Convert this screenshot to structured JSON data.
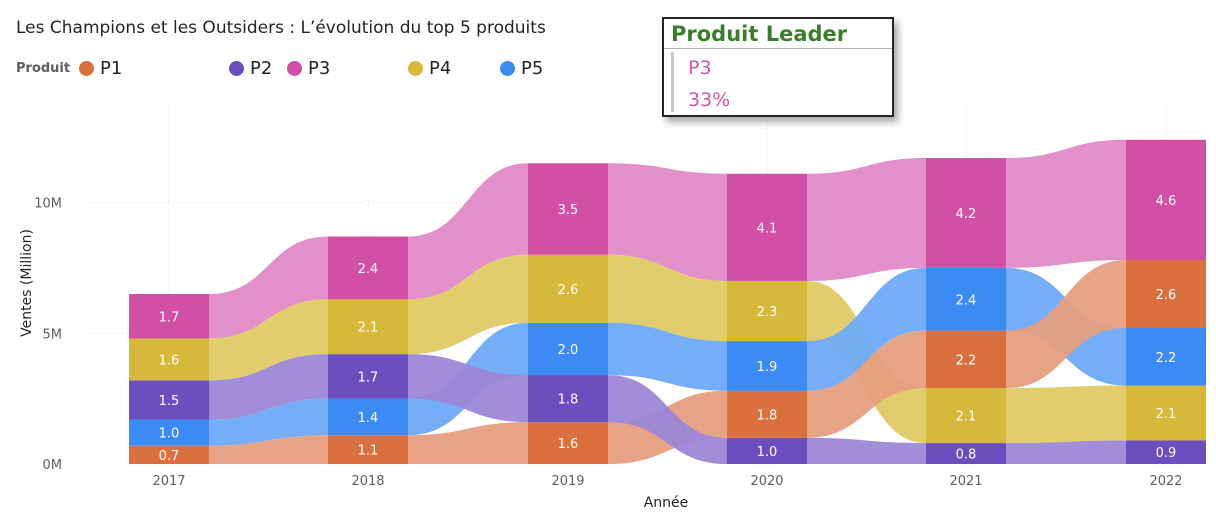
{
  "chart_data": {
    "type": "ribbon",
    "title": "Les Champions et les Outsiders : L’évolution du top 5 produits",
    "legend_title": "Produit",
    "legend_position": "top-left",
    "categories": [
      "2017",
      "2018",
      "2019",
      "2020",
      "2021",
      "2022"
    ],
    "xlabel": "Année",
    "ylabel": "Ventes (Million)",
    "ylim": [
      0,
      12.5
    ],
    "yticks": [
      "0M",
      "5M",
      "10M"
    ],
    "series": [
      {
        "name": "P1",
        "color": "#D9703E",
        "ribbon_color": "#E59E7E",
        "values": [
          0.7,
          1.1,
          1.6,
          1.8,
          2.2,
          2.6
        ],
        "labels": [
          "0.7",
          "1.1",
          "1.6",
          "1.8",
          "2.2",
          "2.6"
        ]
      },
      {
        "name": "P2",
        "color": "#6B4EBE",
        "ribbon_color": "#9D87D6",
        "values": [
          1.5,
          1.7,
          1.8,
          1.0,
          0.8,
          0.9
        ],
        "labels": [
          "1.5",
          "1.7",
          "1.8",
          "1.0",
          "0.8",
          "0.9"
        ]
      },
      {
        "name": "P3",
        "color": "#D14FA4",
        "ribbon_color": "#E08AC6",
        "values": [
          1.7,
          2.4,
          3.5,
          4.1,
          4.2,
          4.6
        ],
        "labels": [
          "1.7",
          "2.4",
          "3.5",
          "4.1",
          "4.2",
          "4.6"
        ]
      },
      {
        "name": "P4",
        "color": "#D6B83A",
        "ribbon_color": "#E0CA64",
        "values": [
          1.6,
          2.1,
          2.6,
          2.3,
          2.1,
          2.1
        ],
        "labels": [
          "1.6",
          "2.1",
          "2.6",
          "2.3",
          "2.1",
          "2.1"
        ]
      },
      {
        "name": "P5",
        "color": "#3C8AF4",
        "ribbon_color": "#6EAAF7",
        "values": [
          1.0,
          1.4,
          2.0,
          1.9,
          2.4,
          2.2
        ],
        "labels": [
          "1.0",
          "1.4",
          "2.0",
          "1.9",
          "2.4",
          "2.2"
        ]
      }
    ],
    "stack_order_bottom_to_top": [
      [
        "P1",
        "P5",
        "P2",
        "P4",
        "P3"
      ],
      [
        "P1",
        "P5",
        "P2",
        "P4",
        "P3"
      ],
      [
        "P1",
        "P2",
        "P5",
        "P4",
        "P3"
      ],
      [
        "P2",
        "P1",
        "P5",
        "P4",
        "P3"
      ],
      [
        "P2",
        "P4",
        "P1",
        "P5",
        "P3"
      ],
      [
        "P2",
        "P4",
        "P5",
        "P1",
        "P3"
      ]
    ],
    "gridlines": true
  },
  "card": {
    "title": "Produit Leader",
    "product": "P3",
    "share": "33%",
    "color": "#D155A7"
  }
}
